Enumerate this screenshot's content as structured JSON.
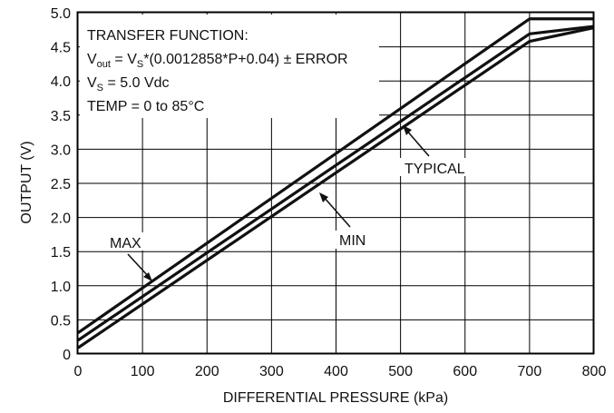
{
  "chart_data": {
    "type": "line",
    "xlabel": "DIFFERENTIAL PRESSURE (kPa)",
    "ylabel": "OUTPUT (V)",
    "xlim": [
      0,
      800
    ],
    "ylim": [
      0,
      5.0
    ],
    "x_ticks": [
      "0",
      "100",
      "200",
      "300",
      "400",
      "500",
      "600",
      "700",
      "800"
    ],
    "y_ticks": [
      "0",
      "0.5",
      "1.0",
      "1.5",
      "2.0",
      "2.5",
      "3.0",
      "3.5",
      "4.0",
      "4.5",
      "5.0"
    ],
    "grid": true,
    "series": [
      {
        "name": "MAX",
        "x": [
          0,
          700,
          800
        ],
        "y": [
          0.31,
          4.91,
          4.91
        ]
      },
      {
        "name": "TYPICAL",
        "x": [
          0,
          700,
          800
        ],
        "y": [
          0.2,
          4.69,
          4.8
        ]
      },
      {
        "name": "MIN",
        "x": [
          0,
          700,
          800
        ],
        "y": [
          0.09,
          4.58,
          4.78
        ]
      }
    ],
    "transfer_function": {
      "heading": "TRANSFER FUNCTION:",
      "vout_main": "V",
      "vout_sub": "out",
      "vout_mid": " = V",
      "vs_sub": "S",
      "vout_tail": "*(0.0012858*P+0.04) ± ERROR",
      "vs_main": "V",
      "vs_sub2": "S",
      "vs_tail": " = 5.0 Vdc",
      "temp": "TEMP = 0 to 85°C"
    },
    "annotations": [
      {
        "text": "MAX",
        "series": "MAX"
      },
      {
        "text": "TYPICAL",
        "series": "TYPICAL"
      },
      {
        "text": "MIN",
        "series": "MIN"
      }
    ]
  }
}
